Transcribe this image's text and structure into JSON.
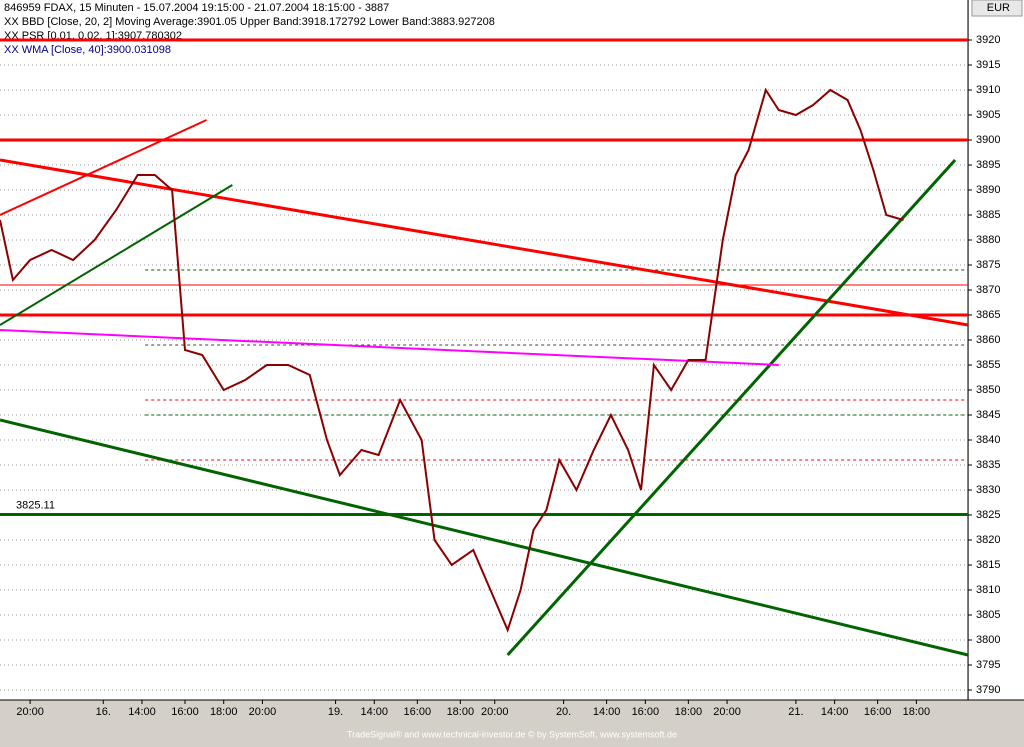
{
  "chart_data": {
    "type": "line",
    "header": [
      "846959  FDAX, 15 Minuten - 15.07.2004 19:15:00 - 21.07.2004 18:15:00 - 3887",
      "XX BBD [Close, 20, 2] Moving Average:3901.05 Upper Band:3918.172792 Lower Band:3883.927208",
      "XX PSR [0.01, 0.02, 1]:3907.780302",
      "XX WMA [Close, 40]:3900.031098"
    ],
    "currency": "EUR",
    "footer": "TradeSignal® and www.technical-investor.de © by  SystemSoft, www.systemsoft.de",
    "xlim": [
      0,
      225
    ],
    "xticks": [
      {
        "value": 7,
        "label": "20:00"
      },
      {
        "value": 24,
        "label": "16."
      },
      {
        "value": 33,
        "label": "14:00"
      },
      {
        "value": 43,
        "label": "16:00"
      },
      {
        "value": 52,
        "label": "18:00"
      },
      {
        "value": 61,
        "label": "20:00"
      },
      {
        "value": 78,
        "label": "19."
      },
      {
        "value": 87,
        "label": "14:00"
      },
      {
        "value": 97,
        "label": "16:00"
      },
      {
        "value": 107,
        "label": "18:00"
      },
      {
        "value": 115,
        "label": "20:00"
      },
      {
        "value": 131,
        "label": "20."
      },
      {
        "value": 141,
        "label": "14:00"
      },
      {
        "value": 150,
        "label": "16:00"
      },
      {
        "value": 160,
        "label": "18:00"
      },
      {
        "value": 169,
        "label": "20:00"
      },
      {
        "value": 185,
        "label": "21."
      },
      {
        "value": 194,
        "label": "14:00"
      },
      {
        "value": 204,
        "label": "16:00"
      },
      {
        "value": 213,
        "label": "18:00"
      }
    ],
    "ylim": [
      3788,
      3928
    ],
    "yticks": [
      3790,
      3795,
      3800,
      3805,
      3810,
      3815,
      3820,
      3825,
      3830,
      3835,
      3840,
      3845,
      3850,
      3855,
      3860,
      3865,
      3870,
      3875,
      3880,
      3885,
      3890,
      3895,
      3900,
      3905,
      3910,
      3915,
      3920
    ],
    "grid": true,
    "x": [
      0,
      3,
      7,
      12,
      17,
      22,
      27,
      32,
      36,
      40,
      43,
      47,
      52,
      57,
      62,
      67,
      72,
      76,
      79,
      84,
      88,
      93,
      98,
      101,
      105,
      110,
      115,
      118,
      121,
      124,
      127,
      130,
      134,
      138,
      142,
      146,
      149,
      152,
      156,
      160,
      164,
      168,
      171,
      174,
      178,
      181,
      185,
      189,
      193,
      197,
      200,
      203,
      206,
      210
    ],
    "series": [
      {
        "name": "Close",
        "color": "#8b0000",
        "values": [
          3884,
          3872,
          3876,
          3878,
          3876,
          3880,
          3886,
          3893,
          3893,
          3890,
          3858,
          3857,
          3850,
          3852,
          3855,
          3855,
          3853,
          3840,
          3833,
          3838,
          3837,
          3848,
          3840,
          3820,
          3815,
          3818,
          3808,
          3802,
          3810,
          3822,
          3826,
          3836,
          3830,
          3838,
          3845,
          3838,
          3830,
          3855,
          3850,
          3856,
          3856,
          3880,
          3893,
          3898,
          3910,
          3906,
          3905,
          3907,
          3910,
          3908,
          3902,
          3894,
          3885,
          3884
        ]
      }
    ],
    "hlines": [
      {
        "value": 3920,
        "color": "#ff0000",
        "width": 3,
        "dash": false
      },
      {
        "value": 3900,
        "color": "#ff0000",
        "width": 3,
        "dash": false
      },
      {
        "value": 3865,
        "color": "#ff0000",
        "width": 3,
        "dash": false
      },
      {
        "value": 3871,
        "color": "#ff0000",
        "width": 1,
        "dash": false
      },
      {
        "value": 3874,
        "color": "#006400",
        "width": 1,
        "dash": true
      },
      {
        "value": 3859,
        "color": "#404040",
        "width": 1,
        "dash": true
      },
      {
        "value": 3848,
        "color": "#ff0000",
        "width": 1,
        "dash": true
      },
      {
        "value": 3845,
        "color": "#006400",
        "width": 1,
        "dash": true
      },
      {
        "value": 3836,
        "color": "#ff0000",
        "width": 1,
        "dash": true
      },
      {
        "value": 3825.11,
        "label": "3825.11",
        "color": "#006400",
        "width": 3,
        "dash": false
      }
    ],
    "trendlines": [
      {
        "x": [
          0,
          225
        ],
        "y": [
          3896,
          3863
        ],
        "color": "#ff0000",
        "width": 3
      },
      {
        "x": [
          0,
          225
        ],
        "y": [
          3844,
          3797
        ],
        "color": "#006400",
        "width": 3
      },
      {
        "x": [
          118,
          222
        ],
        "y": [
          3797,
          3896
        ],
        "color": "#006400",
        "width": 3
      },
      {
        "x": [
          0,
          181
        ],
        "y": [
          3862,
          3855
        ],
        "color": "#ff00ff",
        "width": 2
      },
      {
        "x": [
          0,
          54
        ],
        "y": [
          3863,
          3891
        ],
        "color": "#006400",
        "width": 2
      },
      {
        "x": [
          0,
          48
        ],
        "y": [
          3885,
          3904
        ],
        "color": "#ff0000",
        "width": 2
      }
    ]
  }
}
